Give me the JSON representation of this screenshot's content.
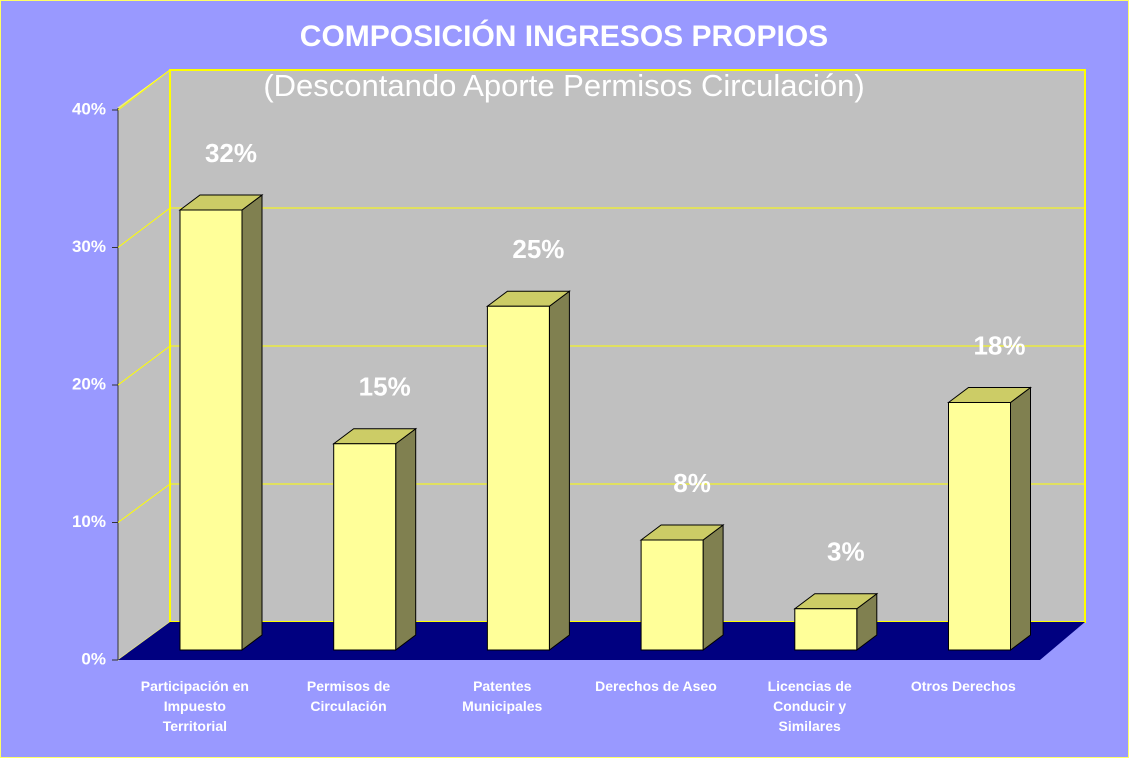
{
  "chart_data": {
    "type": "bar",
    "title": "COMPOSICIÓN INGRESOS PROPIOS",
    "subtitle": "(Descontando Aporte Permisos Circulación)",
    "categories": [
      "Participación en Impuesto Territorial",
      "Permisos de Circulación",
      "Patentes Municipales",
      "Derechos de Aseo",
      "Licencias de Conducir y Similares",
      "Otros Derechos"
    ],
    "values": [
      32,
      15,
      25,
      8,
      3,
      18
    ],
    "value_labels": [
      "32%",
      "15%",
      "25%",
      "8%",
      "3%",
      "18%"
    ],
    "color": "#ffff99",
    "ylim": [
      0,
      40
    ],
    "yticks": [
      {
        "value": 0,
        "label": "0%"
      },
      {
        "value": 10,
        "label": "10%"
      },
      {
        "value": 20,
        "label": "20%"
      },
      {
        "value": 30,
        "label": "30%"
      },
      {
        "value": 40,
        "label": "40%"
      }
    ],
    "grid": true
  }
}
